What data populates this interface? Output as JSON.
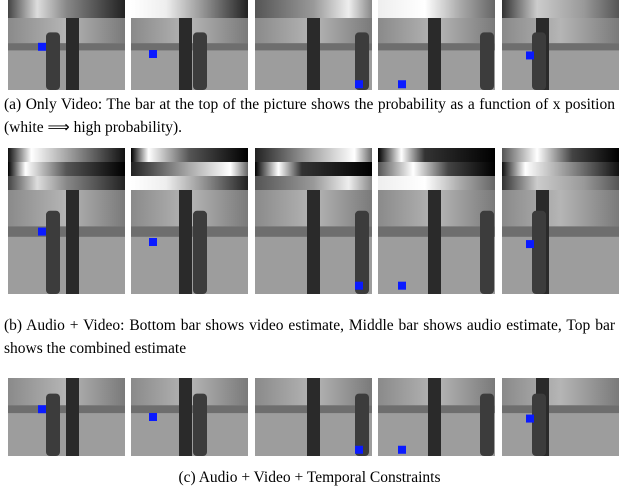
{
  "figure": {
    "panels": [
      {
        "caption": "(a) Only Video: The bar at the top of the picture shows the probability as a function of x position (white ⟹ high probability)."
      },
      {
        "caption": "(b) Audio + Video: Bottom bar shows video estimate, Middle bar shows audio estimate, Top bar shows the combined estimate"
      },
      {
        "caption": "(c) Audio + Video + Temporal Constraints"
      }
    ]
  }
}
